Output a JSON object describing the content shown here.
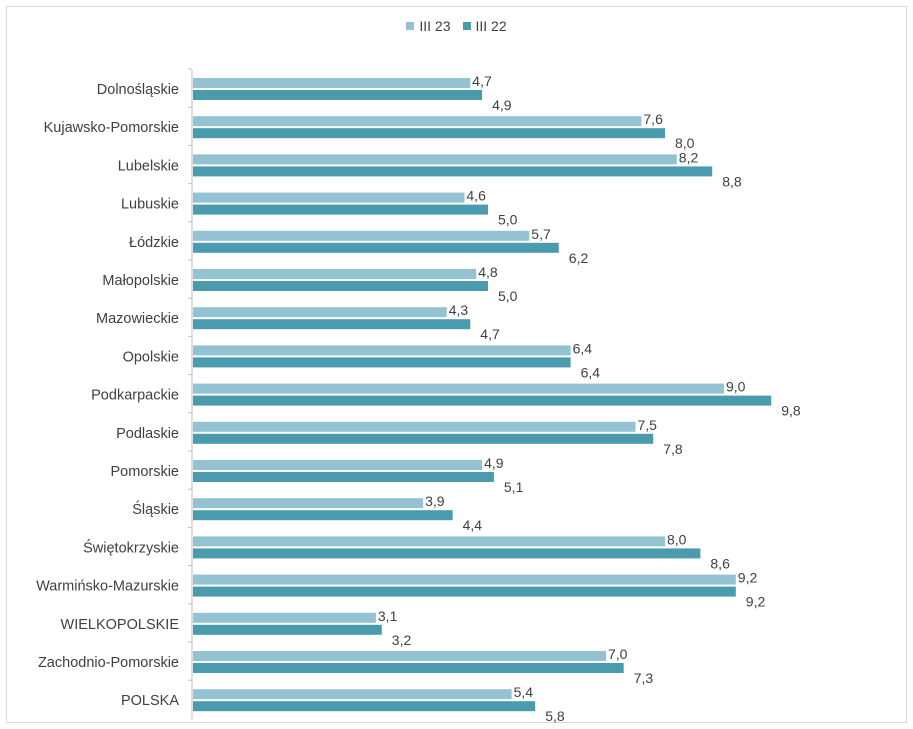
{
  "chart_data": {
    "type": "bar",
    "orientation": "horizontal",
    "categories": [
      "Dolnośląskie",
      "Kujawsko-Pomorskie",
      "Lubelskie",
      "Lubuskie",
      "Łódzkie",
      "Małopolskie",
      "Mazowieckie",
      "Opolskie",
      "Podkarpackie",
      "Podlaskie",
      "Pomorskie",
      "Śląskie",
      "Świętokrzyskie",
      "Warmińsko-Mazurskie",
      "WIELKOPOLSKIE",
      "Zachodnio-Pomorskie",
      "POLSKA"
    ],
    "series": [
      {
        "name": "III 23",
        "color": "#93c2d2",
        "values": [
          4.7,
          7.6,
          8.2,
          4.6,
          5.7,
          4.8,
          4.3,
          6.4,
          9.0,
          7.5,
          4.9,
          3.9,
          8.0,
          9.2,
          3.1,
          7.0,
          5.4
        ],
        "labels": [
          "4,7",
          "7,6",
          "8,2",
          "4,6",
          "5,7",
          "4,8",
          "4,3",
          "6,4",
          "9,0",
          "7,5",
          "4,9",
          "3,9",
          "8,0",
          "9,2",
          "3,1",
          "7,0",
          "5,4"
        ]
      },
      {
        "name": "III 22",
        "color": "#4a9bad",
        "values": [
          4.9,
          8.0,
          8.8,
          5.0,
          6.2,
          5.0,
          4.7,
          6.4,
          9.8,
          7.8,
          5.1,
          4.4,
          8.6,
          9.2,
          3.2,
          7.3,
          5.8
        ],
        "labels": [
          "4,9",
          "8,0",
          "8,8",
          "5,0",
          "6,2",
          "5,0",
          "4,7",
          "6,4",
          "9,8",
          "7,8",
          "5,1",
          "4,4",
          "8,6",
          "9,2",
          "3,2",
          "7,3",
          "5,8"
        ]
      }
    ],
    "legend_position": "top",
    "grid": false,
    "xlim": [
      0,
      10
    ]
  }
}
